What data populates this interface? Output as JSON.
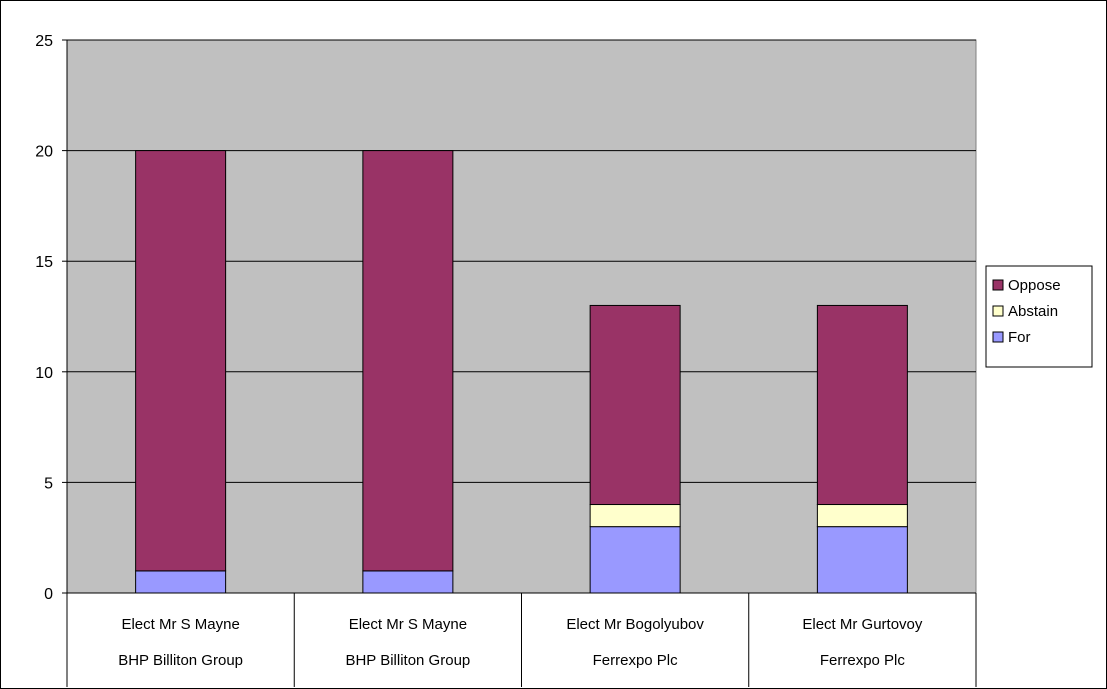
{
  "chart_data": {
    "type": "bar",
    "stacked": true,
    "title": "",
    "xlabel": "",
    "ylabel": "",
    "categories": [
      [
        "Elect Mr S Mayne",
        "BHP Billiton Group"
      ],
      [
        "Elect Mr S Mayne",
        "BHP Billiton Group"
      ],
      [
        "Elect Mr Bogolyubov",
        "Ferrexpo Plc"
      ],
      [
        "Elect Mr Gurtovoy",
        "Ferrexpo Plc"
      ]
    ],
    "series": [
      {
        "name": "For",
        "values": [
          1,
          1,
          3,
          3
        ],
        "color": "#9999ff"
      },
      {
        "name": "Abstain",
        "values": [
          0,
          0,
          1,
          1
        ],
        "color": "#ffffcc"
      },
      {
        "name": "Oppose",
        "values": [
          19,
          19,
          9,
          9
        ],
        "color": "#993366"
      }
    ],
    "legend_order": [
      "Oppose",
      "Abstain",
      "For"
    ],
    "ylim": [
      0,
      25
    ],
    "yticks": [
      0,
      5,
      10,
      15,
      20,
      25
    ],
    "grid": true,
    "legend_position": "right",
    "plot_background": "#c0c0c0"
  }
}
